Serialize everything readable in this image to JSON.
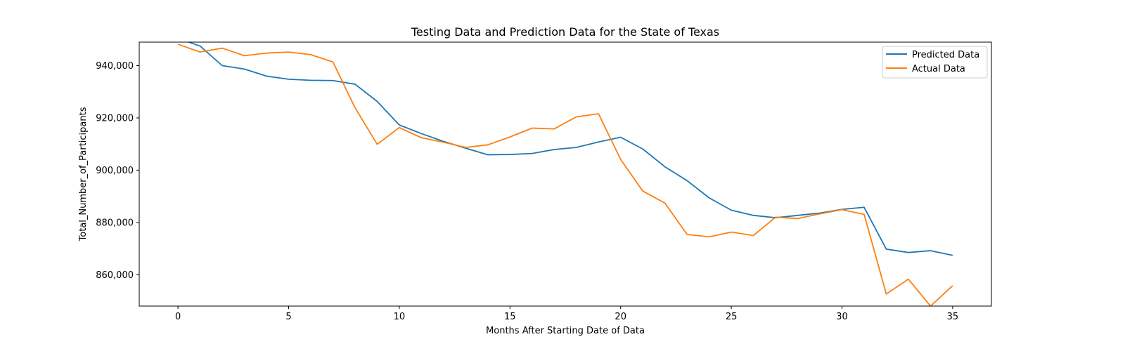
{
  "chart_data": {
    "type": "line",
    "title": "Testing Data and Prediction Data for the State of Texas",
    "xlabel": "Months After Starting Date of Data",
    "ylabel": "Total_Number_of_Participants",
    "xlim": [
      -1.75,
      36.75
    ],
    "ylim": [
      848000,
      949000
    ],
    "xticks": [
      0,
      5,
      10,
      15,
      20,
      25,
      30,
      35
    ],
    "yticks": [
      860000,
      880000,
      900000,
      920000,
      940000
    ],
    "ytick_labels": [
      "860,000",
      "880,000",
      "900,000",
      "920,000",
      "940,000"
    ],
    "legend": "top-right",
    "x": [
      0,
      1,
      2,
      3,
      4,
      5,
      6,
      7,
      8,
      9,
      10,
      11,
      12,
      13,
      14,
      15,
      16,
      17,
      18,
      19,
      20,
      21,
      22,
      23,
      24,
      25,
      26,
      27,
      28,
      29,
      30,
      31,
      32,
      33,
      34,
      35
    ],
    "series": [
      {
        "name": "Predicted Data",
        "color": "#1f77b4",
        "values": [
          950500,
          947500,
          940000,
          938700,
          936000,
          934800,
          934400,
          934300,
          932900,
          926300,
          917300,
          914000,
          911000,
          908400,
          905900,
          906000,
          906400,
          907900,
          908700,
          910800,
          912600,
          908100,
          901300,
          896000,
          889400,
          884700,
          882700,
          881800,
          882700,
          883600,
          885000,
          885800,
          869800,
          868500,
          869200,
          867400
        ]
      },
      {
        "name": "Actual Data",
        "color": "#ff7f0e",
        "values": [
          948200,
          945200,
          946700,
          943800,
          944800,
          945200,
          944200,
          941400,
          923900,
          909900,
          916300,
          912400,
          910700,
          908700,
          909700,
          912700,
          916100,
          915800,
          920400,
          921600,
          904100,
          892000,
          887400,
          875400,
          874500,
          876300,
          875000,
          882000,
          881500,
          883300,
          884900,
          883100,
          852600,
          858300,
          848000,
          855800
        ]
      }
    ]
  }
}
